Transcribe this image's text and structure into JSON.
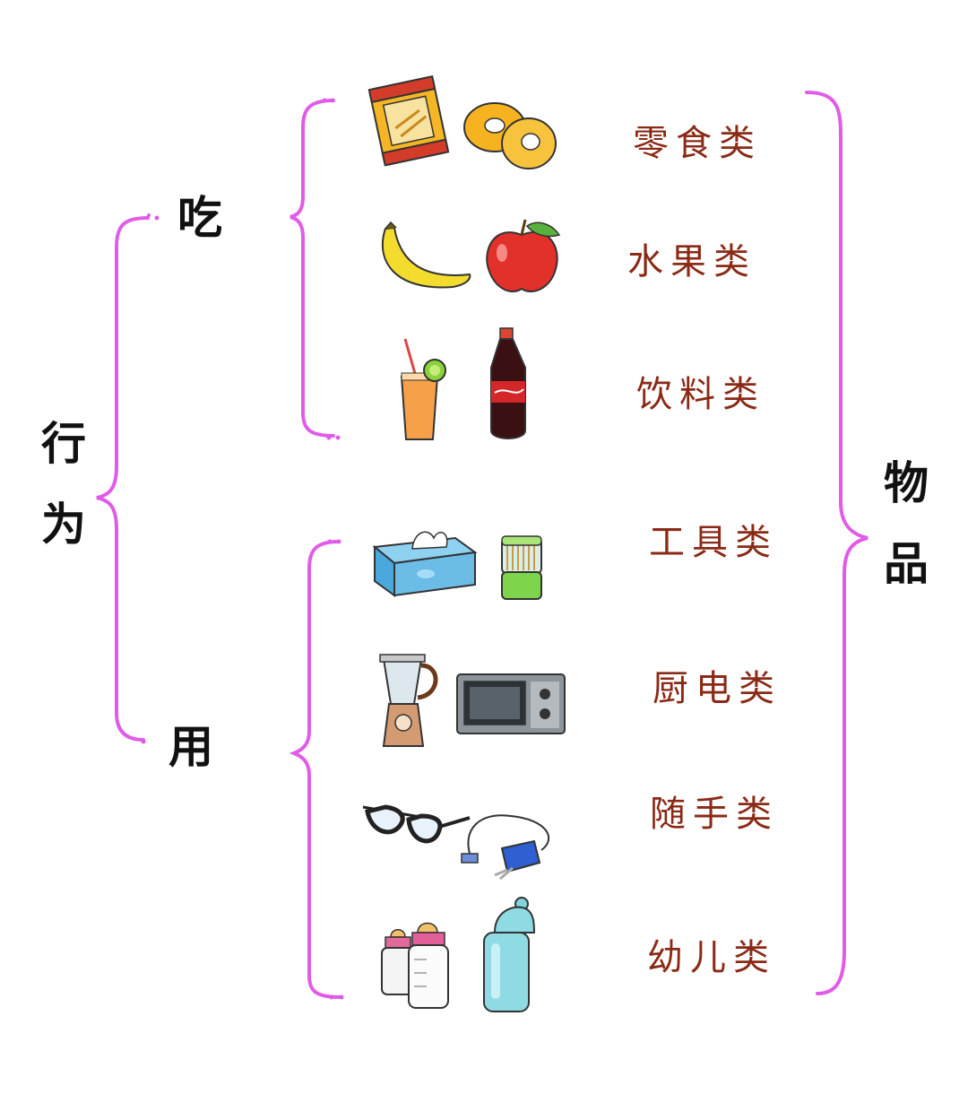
{
  "diagram": {
    "left_label": "行为",
    "right_label": "物品",
    "branches": [
      {
        "label": "吃",
        "categories": [
          "零食类",
          "水果类",
          "饮料类"
        ]
      },
      {
        "label": "用",
        "categories": [
          "工具类",
          "厨电类",
          "随手类",
          "幼儿类"
        ]
      }
    ],
    "item_icons": [
      [
        "snack-bag-icon",
        "donut-icon"
      ],
      [
        "banana-icon",
        "apple-icon"
      ],
      [
        "juice-glass-icon",
        "cola-bottle-icon"
      ],
      [
        "tissue-box-icon",
        "toothpick-holder-icon"
      ],
      [
        "blender-icon",
        "microwave-icon"
      ],
      [
        "glasses-icon",
        "charger-icon"
      ],
      [
        "baby-bottle-icon",
        "water-bottle-icon"
      ]
    ]
  },
  "colors": {
    "bracket": "#e05ce8",
    "category_text": "#8a2a16",
    "main_text": "#111111"
  }
}
